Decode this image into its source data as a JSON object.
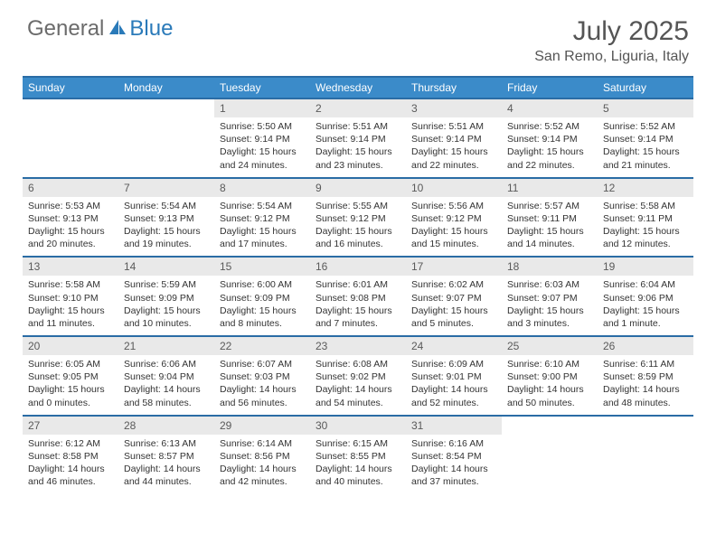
{
  "logo": {
    "general": "General",
    "blue": "Blue"
  },
  "title": "July 2025",
  "location": "San Remo, Liguria, Italy",
  "colors": {
    "header_bg": "#3b8bc9",
    "header_border": "#2a6ca5",
    "daynum_bg": "#e9e9e9",
    "logo_gray": "#6b6b6b",
    "logo_blue": "#2a7ab9"
  },
  "weekdays": [
    "Sunday",
    "Monday",
    "Tuesday",
    "Wednesday",
    "Thursday",
    "Friday",
    "Saturday"
  ],
  "weeks": [
    [
      null,
      null,
      {
        "n": "1",
        "sr": "5:50 AM",
        "ss": "9:14 PM",
        "dl": "15 hours and 24 minutes."
      },
      {
        "n": "2",
        "sr": "5:51 AM",
        "ss": "9:14 PM",
        "dl": "15 hours and 23 minutes."
      },
      {
        "n": "3",
        "sr": "5:51 AM",
        "ss": "9:14 PM",
        "dl": "15 hours and 22 minutes."
      },
      {
        "n": "4",
        "sr": "5:52 AM",
        "ss": "9:14 PM",
        "dl": "15 hours and 22 minutes."
      },
      {
        "n": "5",
        "sr": "5:52 AM",
        "ss": "9:14 PM",
        "dl": "15 hours and 21 minutes."
      }
    ],
    [
      {
        "n": "6",
        "sr": "5:53 AM",
        "ss": "9:13 PM",
        "dl": "15 hours and 20 minutes."
      },
      {
        "n": "7",
        "sr": "5:54 AM",
        "ss": "9:13 PM",
        "dl": "15 hours and 19 minutes."
      },
      {
        "n": "8",
        "sr": "5:54 AM",
        "ss": "9:12 PM",
        "dl": "15 hours and 17 minutes."
      },
      {
        "n": "9",
        "sr": "5:55 AM",
        "ss": "9:12 PM",
        "dl": "15 hours and 16 minutes."
      },
      {
        "n": "10",
        "sr": "5:56 AM",
        "ss": "9:12 PM",
        "dl": "15 hours and 15 minutes."
      },
      {
        "n": "11",
        "sr": "5:57 AM",
        "ss": "9:11 PM",
        "dl": "15 hours and 14 minutes."
      },
      {
        "n": "12",
        "sr": "5:58 AM",
        "ss": "9:11 PM",
        "dl": "15 hours and 12 minutes."
      }
    ],
    [
      {
        "n": "13",
        "sr": "5:58 AM",
        "ss": "9:10 PM",
        "dl": "15 hours and 11 minutes."
      },
      {
        "n": "14",
        "sr": "5:59 AM",
        "ss": "9:09 PM",
        "dl": "15 hours and 10 minutes."
      },
      {
        "n": "15",
        "sr": "6:00 AM",
        "ss": "9:09 PM",
        "dl": "15 hours and 8 minutes."
      },
      {
        "n": "16",
        "sr": "6:01 AM",
        "ss": "9:08 PM",
        "dl": "15 hours and 7 minutes."
      },
      {
        "n": "17",
        "sr": "6:02 AM",
        "ss": "9:07 PM",
        "dl": "15 hours and 5 minutes."
      },
      {
        "n": "18",
        "sr": "6:03 AM",
        "ss": "9:07 PM",
        "dl": "15 hours and 3 minutes."
      },
      {
        "n": "19",
        "sr": "6:04 AM",
        "ss": "9:06 PM",
        "dl": "15 hours and 1 minute."
      }
    ],
    [
      {
        "n": "20",
        "sr": "6:05 AM",
        "ss": "9:05 PM",
        "dl": "15 hours and 0 minutes."
      },
      {
        "n": "21",
        "sr": "6:06 AM",
        "ss": "9:04 PM",
        "dl": "14 hours and 58 minutes."
      },
      {
        "n": "22",
        "sr": "6:07 AM",
        "ss": "9:03 PM",
        "dl": "14 hours and 56 minutes."
      },
      {
        "n": "23",
        "sr": "6:08 AM",
        "ss": "9:02 PM",
        "dl": "14 hours and 54 minutes."
      },
      {
        "n": "24",
        "sr": "6:09 AM",
        "ss": "9:01 PM",
        "dl": "14 hours and 52 minutes."
      },
      {
        "n": "25",
        "sr": "6:10 AM",
        "ss": "9:00 PM",
        "dl": "14 hours and 50 minutes."
      },
      {
        "n": "26",
        "sr": "6:11 AM",
        "ss": "8:59 PM",
        "dl": "14 hours and 48 minutes."
      }
    ],
    [
      {
        "n": "27",
        "sr": "6:12 AM",
        "ss": "8:58 PM",
        "dl": "14 hours and 46 minutes."
      },
      {
        "n": "28",
        "sr": "6:13 AM",
        "ss": "8:57 PM",
        "dl": "14 hours and 44 minutes."
      },
      {
        "n": "29",
        "sr": "6:14 AM",
        "ss": "8:56 PM",
        "dl": "14 hours and 42 minutes."
      },
      {
        "n": "30",
        "sr": "6:15 AM",
        "ss": "8:55 PM",
        "dl": "14 hours and 40 minutes."
      },
      {
        "n": "31",
        "sr": "6:16 AM",
        "ss": "8:54 PM",
        "dl": "14 hours and 37 minutes."
      },
      null,
      null
    ]
  ],
  "labels": {
    "sunrise": "Sunrise:",
    "sunset": "Sunset:",
    "daylight": "Daylight:"
  }
}
